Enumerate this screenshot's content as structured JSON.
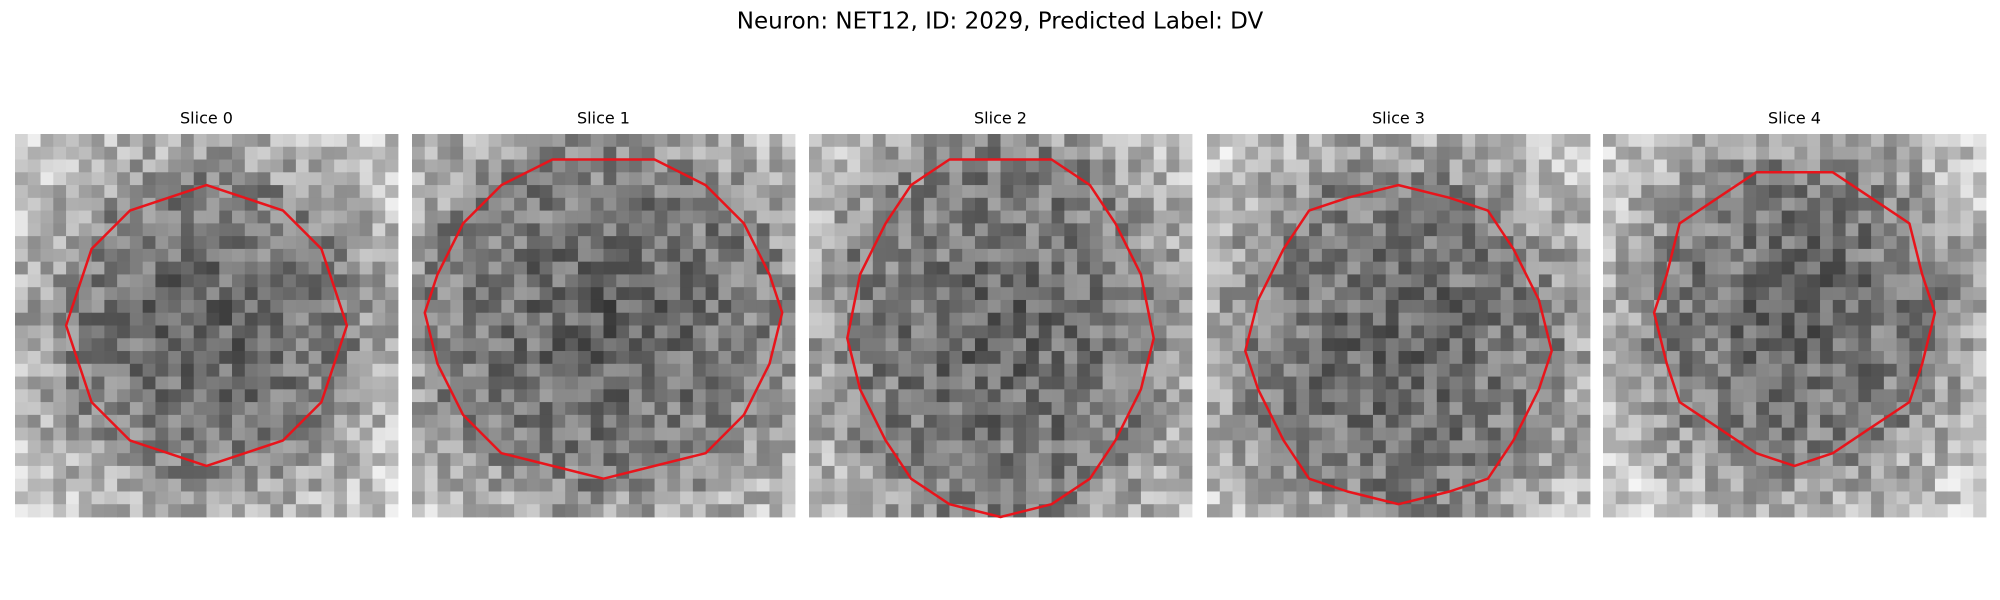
{
  "title": "Neuron: NET12, ID: 2029, Predicted Label: DV",
  "panels": [
    {
      "title": "Slice 0"
    },
    {
      "title": "Slice 1"
    },
    {
      "title": "Slice 2"
    },
    {
      "title": "Slice 3"
    },
    {
      "title": "Slice 4"
    }
  ]
}
